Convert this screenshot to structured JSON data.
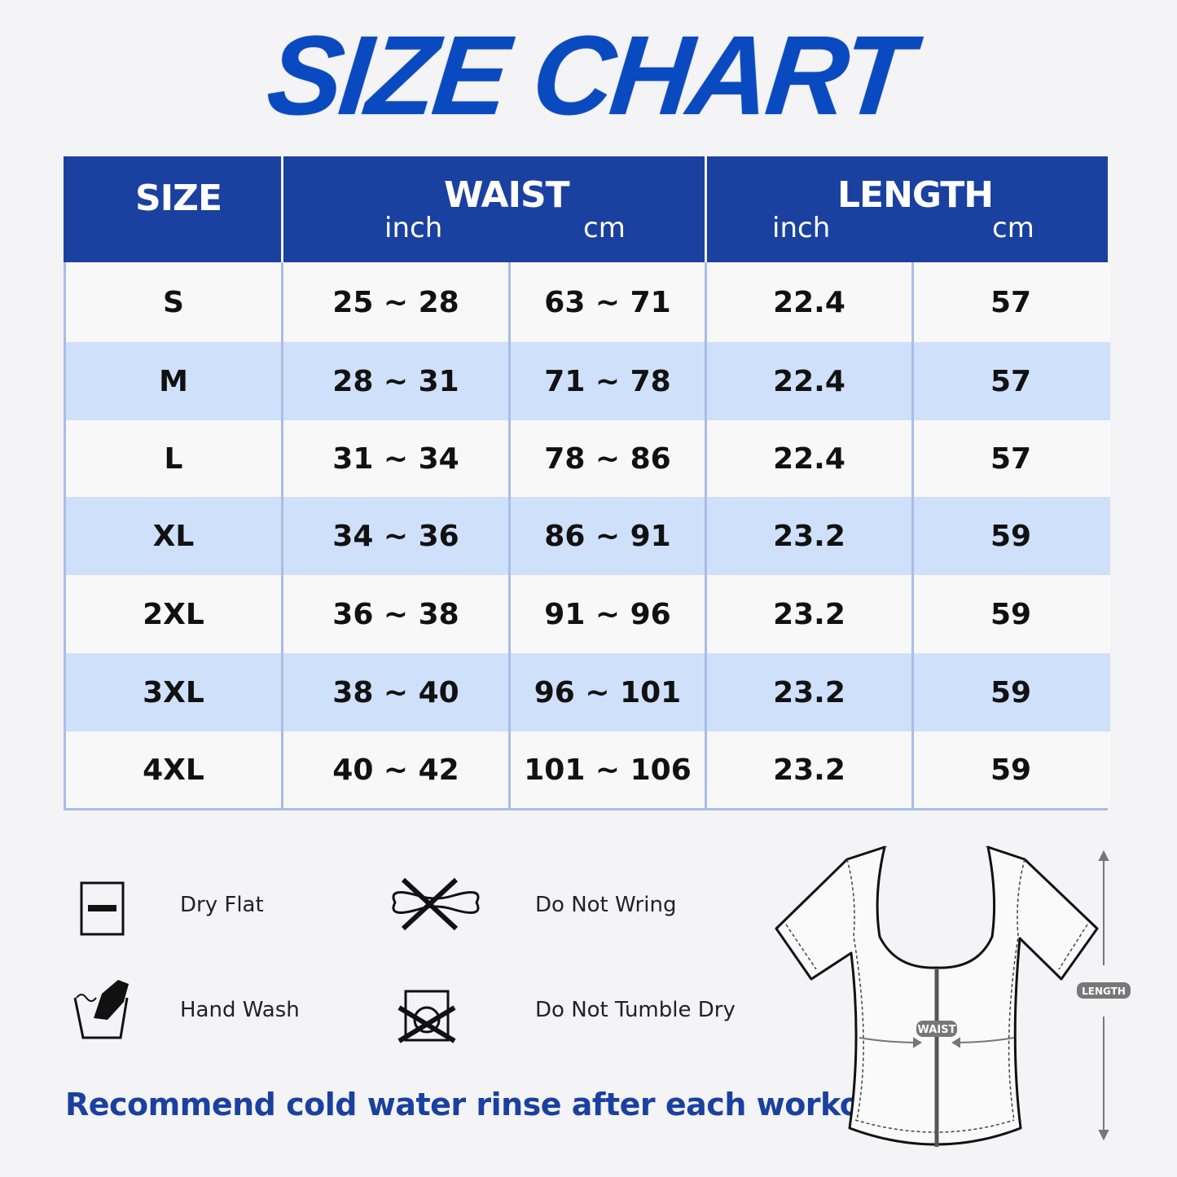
{
  "title": "SIZE CHART",
  "table": {
    "headers": {
      "size": "SIZE",
      "waist": "WAIST",
      "length": "LENGTH",
      "waist_inch": "inch",
      "waist_cm": "cm",
      "length_inch": "inch",
      "length_cm": "cm"
    },
    "rows": [
      {
        "size": "S",
        "waist_inch": "25 ~ 28",
        "waist_cm": "63 ~ 71",
        "length_inch": "22.4",
        "length_cm": "57"
      },
      {
        "size": "M",
        "waist_inch": "28 ~ 31",
        "waist_cm": "71 ~ 78",
        "length_inch": "22.4",
        "length_cm": "57"
      },
      {
        "size": "L",
        "waist_inch": "31 ~ 34",
        "waist_cm": "78 ~ 86",
        "length_inch": "22.4",
        "length_cm": "57"
      },
      {
        "size": "XL",
        "waist_inch": "34 ~ 36",
        "waist_cm": "86 ~ 91",
        "length_inch": "23.2",
        "length_cm": "59"
      },
      {
        "size": "2XL",
        "waist_inch": "36 ~ 38",
        "waist_cm": "91 ~ 96",
        "length_inch": "23.2",
        "length_cm": "59"
      },
      {
        "size": "3XL",
        "waist_inch": "38 ~ 40",
        "waist_cm": "96 ~ 101",
        "length_inch": "23.2",
        "length_cm": "59"
      },
      {
        "size": "4XL",
        "waist_inch": "40 ~ 42",
        "waist_cm": "101 ~ 106",
        "length_inch": "23.2",
        "length_cm": "59"
      }
    ]
  },
  "care": [
    {
      "label": "Dry Flat",
      "icon": "dry-flat-icon"
    },
    {
      "label": "Do Not Wring",
      "icon": "do-not-wring-icon"
    },
    {
      "label": "Hand Wash",
      "icon": "hand-wash-icon"
    },
    {
      "label": "Do Not Tumble Dry",
      "icon": "do-not-tumble-dry-icon"
    }
  ],
  "note": "Recommend cold water rinse after each workout.",
  "diagram": {
    "waist_label": "WAIST",
    "length_label": "LENGTH"
  },
  "colors": {
    "brand_blue": "#1a40a0",
    "title_blue": "#0a4ac0",
    "row_alt": "#cfe0fa"
  }
}
